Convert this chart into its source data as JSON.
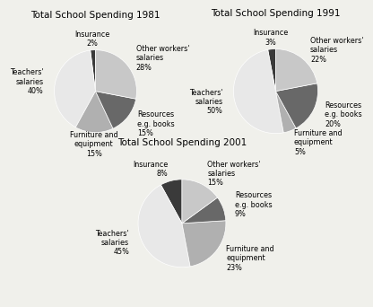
{
  "charts": [
    {
      "title": "Total School Spending 1981",
      "labels": [
        "Insurance\n2%",
        "Teachers'\nsalaries\n40%",
        "Furniture and\nequipment\n15%",
        "Resources\ne.g. books\n15%",
        "Other workers'\nsalaries\n28%"
      ],
      "values": [
        2,
        40,
        15,
        15,
        28
      ],
      "colors": [
        "#3a3a3a",
        "#e8e8e8",
        "#b0b0b0",
        "#686868",
        "#c8c8c8"
      ],
      "startangle": 90,
      "label_radii": [
        1.28,
        1.28,
        1.28,
        1.28,
        1.28
      ]
    },
    {
      "title": "Total School Spending 1991",
      "labels": [
        "Insurance\n3%",
        "Teachers'\nsalaries\n50%",
        "Furniture and\nequipment\n5%",
        "Resources\ne.g. books\n20%",
        "Other workers'\nsalaries\n22%"
      ],
      "values": [
        3,
        50,
        5,
        20,
        22
      ],
      "colors": [
        "#3a3a3a",
        "#e8e8e8",
        "#b0b0b0",
        "#686868",
        "#c8c8c8"
      ],
      "startangle": 90,
      "label_radii": [
        1.28,
        1.28,
        1.28,
        1.28,
        1.28
      ]
    },
    {
      "title": "Total School Spending 2001",
      "labels": [
        "Insurance\n8%",
        "Teachers'\nsalaries\n45%",
        "Furniture and\nequipment\n23%",
        "Resources\ne.g. books\n9%",
        "Other workers'\nsalaries\n15%"
      ],
      "values": [
        8,
        45,
        23,
        9,
        15
      ],
      "colors": [
        "#3a3a3a",
        "#e8e8e8",
        "#b0b0b0",
        "#686868",
        "#c8c8c8"
      ],
      "startangle": 90,
      "label_radii": [
        1.28,
        1.28,
        1.28,
        1.28,
        1.28
      ]
    }
  ],
  "bg_color": "#f0f0eb",
  "title_fontsize": 7.5,
  "label_fontsize": 5.8
}
